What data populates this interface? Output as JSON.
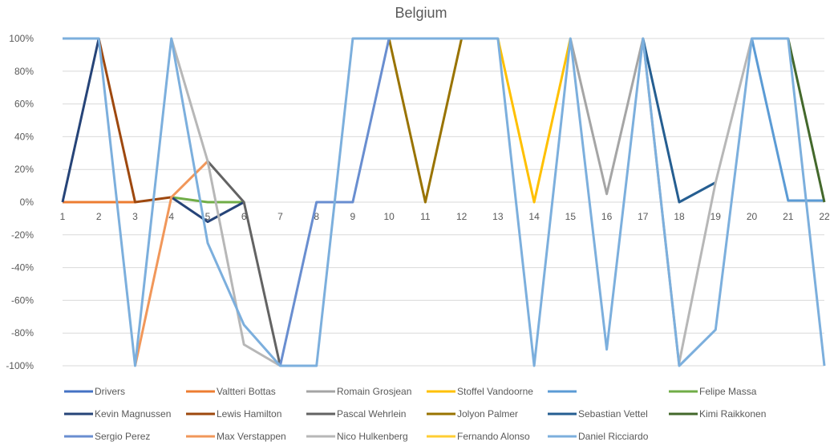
{
  "chart_data": {
    "type": "line",
    "title": "Belgium",
    "xlabel": "",
    "ylabel": "",
    "x": [
      1,
      2,
      3,
      4,
      5,
      6,
      7,
      8,
      9,
      10,
      11,
      12,
      13,
      14,
      15,
      16,
      17,
      18,
      19,
      20,
      21,
      22
    ],
    "y_ticks": [
      "100%",
      "80%",
      "60%",
      "40%",
      "20%",
      "0%",
      "-20%",
      "-40%",
      "-60%",
      "-80%",
      "-100%"
    ],
    "ylim": [
      -100,
      100
    ],
    "grid": true,
    "legend_position": "bottom",
    "series": [
      {
        "name": "Drivers",
        "color": "#4472c4",
        "values": [
          null,
          null,
          null,
          null,
          null,
          null,
          null,
          null,
          null,
          null,
          null,
          null,
          null,
          null,
          null,
          null,
          null,
          null,
          null,
          null,
          null,
          null
        ]
      },
      {
        "name": "Valtteri Bottas",
        "color": "#ed7d31",
        "values": [
          0,
          0,
          0,
          null,
          null,
          null,
          null,
          null,
          null,
          null,
          null,
          null,
          null,
          null,
          null,
          null,
          null,
          null,
          null,
          null,
          null,
          null
        ]
      },
      {
        "name": "Romain Grosjean",
        "color": "#a5a5a5",
        "values": [
          null,
          null,
          null,
          null,
          null,
          null,
          null,
          null,
          null,
          null,
          null,
          null,
          null,
          null,
          100,
          5,
          100,
          -100,
          null,
          null,
          null,
          null
        ]
      },
      {
        "name": "Stoffel Vandoorne",
        "color": "#ffc000",
        "values": [
          null,
          null,
          null,
          null,
          null,
          null,
          null,
          null,
          null,
          null,
          null,
          null,
          100,
          0,
          100,
          null,
          null,
          null,
          null,
          null,
          null,
          null
        ]
      },
      {
        "name": "",
        "color": "#5b9bd5",
        "values": [
          null,
          null,
          null,
          null,
          null,
          null,
          null,
          null,
          null,
          null,
          null,
          null,
          null,
          null,
          null,
          null,
          null,
          null,
          null,
          100,
          1,
          1
        ]
      },
      {
        "name": "Felipe Massa",
        "color": "#70ad47",
        "values": [
          null,
          null,
          null,
          3,
          0,
          0,
          null,
          null,
          null,
          null,
          null,
          null,
          null,
          null,
          null,
          null,
          null,
          null,
          null,
          null,
          null,
          null
        ]
      },
      {
        "name": "Kevin Magnussen",
        "color": "#264478",
        "values": [
          0,
          100,
          null,
          3,
          -12,
          0,
          null,
          null,
          null,
          null,
          null,
          null,
          null,
          null,
          null,
          null,
          null,
          null,
          null,
          null,
          null,
          null
        ]
      },
      {
        "name": "Lewis Hamilton",
        "color": "#9e480e",
        "values": [
          null,
          100,
          0,
          3,
          null,
          null,
          null,
          null,
          null,
          null,
          null,
          null,
          null,
          null,
          null,
          null,
          null,
          null,
          null,
          null,
          null,
          null
        ]
      },
      {
        "name": "Pascal Wehrlein",
        "color": "#636363",
        "values": [
          null,
          null,
          null,
          null,
          25,
          0,
          -100,
          null,
          null,
          null,
          null,
          null,
          null,
          null,
          null,
          null,
          null,
          null,
          null,
          null,
          null,
          null
        ]
      },
      {
        "name": "Jolyon Palmer",
        "color": "#997300",
        "values": [
          null,
          null,
          null,
          null,
          null,
          null,
          null,
          null,
          null,
          100,
          0,
          100,
          null,
          null,
          null,
          null,
          null,
          null,
          null,
          null,
          null,
          null
        ]
      },
      {
        "name": "Sebastian Vettel",
        "color": "#255e91",
        "values": [
          null,
          null,
          null,
          null,
          null,
          null,
          null,
          null,
          null,
          null,
          null,
          null,
          null,
          null,
          null,
          null,
          100,
          0,
          12,
          null,
          null,
          null
        ]
      },
      {
        "name": "Kimi Raikkonen",
        "color": "#43682b",
        "values": [
          null,
          null,
          null,
          null,
          null,
          null,
          null,
          null,
          null,
          null,
          null,
          null,
          null,
          null,
          null,
          null,
          null,
          null,
          null,
          null,
          100,
          0
        ]
      },
      {
        "name": "Sergio Perez",
        "color": "#698ed0",
        "values": [
          null,
          null,
          null,
          null,
          null,
          null,
          -100,
          0,
          0,
          100,
          null,
          null,
          null,
          null,
          null,
          null,
          null,
          null,
          null,
          null,
          null,
          null
        ]
      },
      {
        "name": "Max Verstappen",
        "color": "#f1975a",
        "values": [
          null,
          null,
          -100,
          3,
          25,
          null,
          null,
          null,
          null,
          null,
          null,
          null,
          null,
          null,
          null,
          null,
          null,
          null,
          null,
          null,
          null,
          null
        ]
      },
      {
        "name": "Nico Hulkenberg",
        "color": "#b7b7b7",
        "values": [
          null,
          null,
          null,
          100,
          25,
          -87,
          -100,
          null,
          null,
          null,
          null,
          null,
          null,
          null,
          null,
          null,
          null,
          -98,
          12,
          100,
          null,
          null
        ]
      },
      {
        "name": "Fernando Alonso",
        "color": "#ffcd33",
        "values": [
          null,
          null,
          null,
          null,
          null,
          null,
          null,
          null,
          null,
          null,
          null,
          null,
          null,
          null,
          null,
          null,
          null,
          null,
          null,
          null,
          null,
          null
        ]
      },
      {
        "name": "Daniel Ricciardo",
        "color": "#7cafdd",
        "values": [
          100,
          100,
          -100,
          100,
          -25,
          -75,
          -100,
          -100,
          100,
          100,
          100,
          100,
          100,
          -100,
          100,
          -90,
          100,
          -100,
          -78,
          100,
          100,
          -100
        ]
      }
    ]
  }
}
